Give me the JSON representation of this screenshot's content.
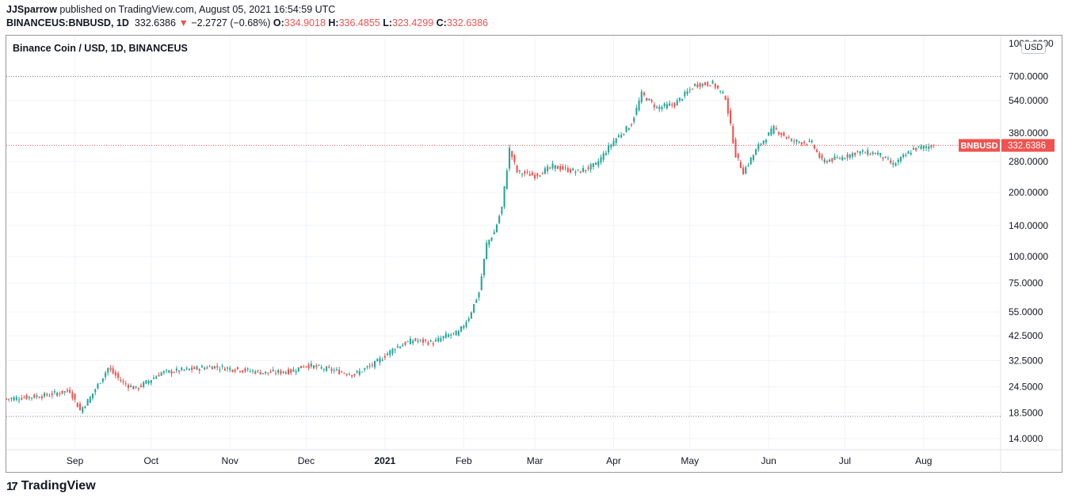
{
  "header": {
    "author": "JJSparrow",
    "published_text": "published on TradingView.com, August 05, 2021 16:54:59 UTC",
    "symbol": "BINANCEUS:BNBUSD, 1D",
    "price": "332.6386",
    "change_arrow": "▼",
    "change": "−2.2727 (−0.68%)",
    "o_label": "O:",
    "o_value": "334.9018",
    "h_label": "H:",
    "h_value": "336.4855",
    "l_label": "L:",
    "l_value": "323.4299",
    "c_label": "C:",
    "c_value": "332.6386"
  },
  "chart": {
    "title": "Binance Coin / USD, 1D, BINANCEUS",
    "currency_button": "USD",
    "price_tag_label": "BNBUSD",
    "price_tag_value": "332.6386",
    "colors": {
      "up": "#26a69a",
      "down": "#ef5350",
      "grid": "#f0f3fa",
      "axis_text": "#131722"
    }
  },
  "chart_data": {
    "type": "candlestick",
    "y_scale": "log",
    "title": "Binance Coin / USD, 1D, BINANCEUS",
    "y_ticks": [
      "1000.0000",
      "700.0000",
      "540.0000",
      "380.0000",
      "280.0000",
      "200.0000",
      "140.0000",
      "100.0000",
      "75.0000",
      "55.0000",
      "42.5000",
      "32.5000",
      "24.5000",
      "18.5000",
      "14.0000"
    ],
    "x_ticks": [
      "Sep",
      "Oct",
      "Nov",
      "Dec",
      "2021",
      "Feb",
      "Mar",
      "Apr",
      "May",
      "Jun",
      "Jul",
      "Aug"
    ],
    "horizontal_lines": [
      {
        "value": 700,
        "style": "dotted"
      },
      {
        "value": 332.6386,
        "style": "dotted-red"
      },
      {
        "value": 17.8,
        "style": "dotted"
      }
    ],
    "last_price": 332.6386,
    "x_range": [
      "2020-08-05",
      "2021-08-31"
    ],
    "series": {
      "name": "BNBUSD",
      "approx_daily_close_anchors": [
        [
          "2020-08-05",
          21.5
        ],
        [
          "2020-08-20",
          22.3
        ],
        [
          "2020-08-30",
          23.5
        ],
        [
          "2020-09-03",
          19.0
        ],
        [
          "2020-09-07",
          21.8
        ],
        [
          "2020-09-14",
          30.0
        ],
        [
          "2020-09-20",
          25.5
        ],
        [
          "2020-09-25",
          24.0
        ],
        [
          "2020-10-05",
          28.5
        ],
        [
          "2020-10-15",
          29.5
        ],
        [
          "2020-10-25",
          30.5
        ],
        [
          "2020-11-05",
          29.5
        ],
        [
          "2020-11-15",
          28.5
        ],
        [
          "2020-11-25",
          29.0
        ],
        [
          "2020-12-01",
          31.0
        ],
        [
          "2020-12-10",
          29.5
        ],
        [
          "2020-12-20",
          28.0
        ],
        [
          "2020-12-28",
          31.5
        ],
        [
          "2021-01-05",
          37.5
        ],
        [
          "2021-01-12",
          40.5
        ],
        [
          "2021-01-20",
          39.5
        ],
        [
          "2021-01-25",
          42.5
        ],
        [
          "2021-01-30",
          44.0
        ],
        [
          "2021-02-03",
          52.0
        ],
        [
          "2021-02-07",
          68.0
        ],
        [
          "2021-02-10",
          115.0
        ],
        [
          "2021-02-13",
          130.0
        ],
        [
          "2021-02-16",
          170.0
        ],
        [
          "2021-02-19",
          320.0
        ],
        [
          "2021-02-22",
          250.0
        ],
        [
          "2021-03-01",
          240.0
        ],
        [
          "2021-03-08",
          265.0
        ],
        [
          "2021-03-18",
          250.0
        ],
        [
          "2021-03-25",
          270.0
        ],
        [
          "2021-04-01",
          350.0
        ],
        [
          "2021-04-08",
          420.0
        ],
        [
          "2021-04-12",
          580.0
        ],
        [
          "2021-04-18",
          500.0
        ],
        [
          "2021-04-25",
          520.0
        ],
        [
          "2021-05-03",
          640.0
        ],
        [
          "2021-05-10",
          650.0
        ],
        [
          "2021-05-15",
          560.0
        ],
        [
          "2021-05-19",
          300.0
        ],
        [
          "2021-05-22",
          250.0
        ],
        [
          "2021-05-28",
          330.0
        ],
        [
          "2021-06-03",
          400.0
        ],
        [
          "2021-06-10",
          350.0
        ],
        [
          "2021-06-18",
          340.0
        ],
        [
          "2021-06-22",
          280.0
        ],
        [
          "2021-06-29",
          290.0
        ],
        [
          "2021-07-06",
          310.0
        ],
        [
          "2021-07-14",
          305.0
        ],
        [
          "2021-07-20",
          270.0
        ],
        [
          "2021-07-28",
          320.0
        ],
        [
          "2021-08-05",
          332.6386
        ]
      ]
    }
  },
  "footer": {
    "logo_mark": "17",
    "logo_text": "TradingView"
  }
}
